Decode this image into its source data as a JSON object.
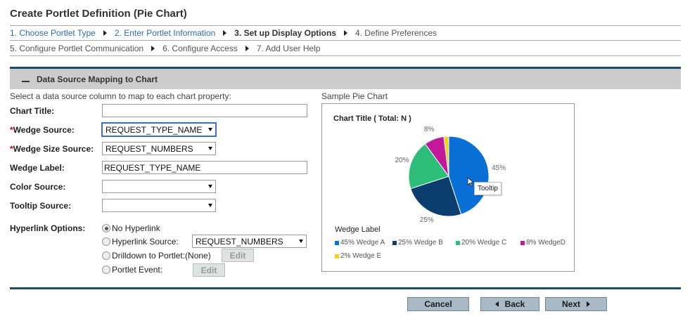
{
  "page": {
    "title": "Create Portlet Definition (Pie Chart)"
  },
  "steps": [
    {
      "label": "1. Choose Portlet Type",
      "state": "done"
    },
    {
      "label": "2. Enter Portlet Information",
      "state": "done"
    },
    {
      "label": "3. Set up Display Options",
      "state": "current"
    },
    {
      "label": "4. Define Preferences",
      "state": "pending"
    },
    {
      "label": "5. Configure Portlet Communication",
      "state": "pending"
    },
    {
      "label": "6. Configure Access",
      "state": "pending"
    },
    {
      "label": "7. Add User Help",
      "state": "pending"
    }
  ],
  "section": {
    "title": "Data Source Mapping to Chart",
    "instructions": "Select a data source column to map to each chart property:"
  },
  "form": {
    "chart_title": {
      "label": "Chart Title:",
      "value": ""
    },
    "wedge_source": {
      "required_mark": "*",
      "label": "Wedge Source:",
      "value": "REQUEST_TYPE_NAME"
    },
    "wedge_size_source": {
      "required_mark": "*",
      "label": "Wedge Size Source:",
      "value": "REQUEST_NUMBERS"
    },
    "wedge_label": {
      "label": "Wedge Label:",
      "value": "REQUEST_TYPE_NAME"
    },
    "color_source": {
      "label": "Color Source:",
      "value": ""
    },
    "tooltip_source": {
      "label": "Tooltip Source:",
      "value": ""
    },
    "hyperlink": {
      "label": "Hyperlink Options:",
      "no_hyperlink": "No Hyperlink",
      "hyperlink_source": "Hyperlink Source:",
      "hyperlink_source_value": "REQUEST_NUMBERS",
      "drilldown": "Drilldown to Portlet:",
      "drilldown_value": "(None)",
      "portlet_event": "Portlet Event:",
      "edit_label": "Edit",
      "selected": "no_hyperlink"
    }
  },
  "preview": {
    "label": "Sample Pie Chart",
    "tooltip": "Tooltip",
    "legend_title": "Wedge Label"
  },
  "chart_data": {
    "type": "pie",
    "title": "Chart Title ( Total: N )",
    "slices": [
      {
        "label": "Wedge A",
        "value": 45,
        "pct_label": "45%",
        "legend": "45% Wedge A",
        "color": "#0a6fd6"
      },
      {
        "label": "Wedge B",
        "value": 25,
        "pct_label": "25%",
        "legend": "25% Wedge B",
        "color": "#0b3d6e"
      },
      {
        "label": "Wedge C",
        "value": 20,
        "pct_label": "20%",
        "legend": "20% Wedge C",
        "color": "#2dbf7a"
      },
      {
        "label": "WedgeD",
        "value": 8,
        "pct_label": "8%",
        "legend": "8% WedgeD",
        "color": "#c2189c"
      },
      {
        "label": "Wedge E",
        "value": 2,
        "pct_label": "",
        "legend": "2% Wedge E",
        "color": "#f2d21b"
      }
    ],
    "legend_position": "bottom"
  },
  "buttons": {
    "cancel": "Cancel",
    "back": "Back",
    "next": "Next"
  },
  "colors": {
    "accent": "#1c4a77",
    "link": "#2f6dad",
    "required": "#cc0000",
    "button": "#a9bac6"
  }
}
